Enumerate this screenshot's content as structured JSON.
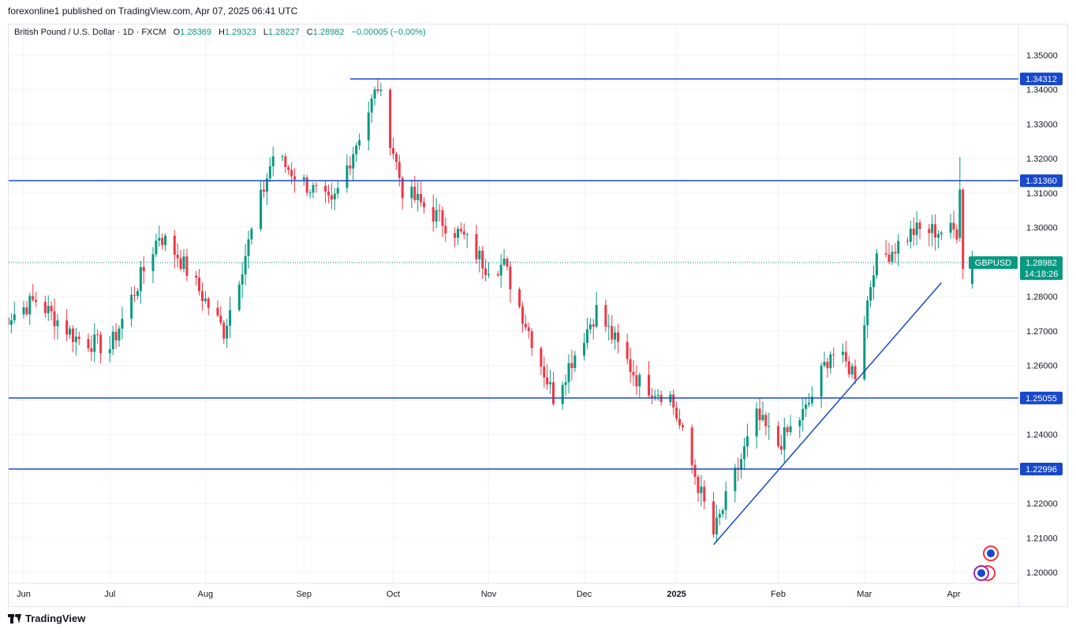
{
  "header": {
    "publish_line": "forexonline1 published on TradingView.com, Apr 07, 2025 06:41 UTC"
  },
  "legend": {
    "symbol": "British Pound / U.S. Dollar · 1D · FXCM",
    "o_label": "O",
    "o_value": "1.28369",
    "h_label": "H",
    "h_value": "1.29323",
    "l_label": "L",
    "l_value": "1.28227",
    "c_label": "C",
    "c_value": "1.28982",
    "change": "−0.00005 (−0.00%)"
  },
  "footer": {
    "brand": "TradingView"
  },
  "colors": {
    "up": "#089981",
    "down": "#f23645",
    "level_line": "#1848cc",
    "tag_bg": "#1848cc",
    "price_tag_bg": "#089981",
    "grid": "#f0f3fa"
  },
  "chart_data": {
    "type": "candlestick",
    "ylim": [
      1.195,
      1.355
    ],
    "y_ticks": [
      "1.35000",
      "1.34000",
      "1.33000",
      "1.32000",
      "1.31000",
      "1.30000",
      "1.29000",
      "1.28000",
      "1.27000",
      "1.26000",
      "1.25000",
      "1.24000",
      "1.23000",
      "1.22000",
      "1.21000",
      "1.20000"
    ],
    "x_labels": [
      {
        "label": "Jun",
        "date": "2024-06-03"
      },
      {
        "label": "Jul",
        "date": "2024-07-01"
      },
      {
        "label": "Aug",
        "date": "2024-08-01"
      },
      {
        "label": "Sep",
        "date": "2024-09-02"
      },
      {
        "label": "Oct",
        "date": "2024-10-01"
      },
      {
        "label": "Nov",
        "date": "2024-11-01"
      },
      {
        "label": "Dec",
        "date": "2024-12-02"
      },
      {
        "label": "2025",
        "date": "2025-01-01",
        "bold": true
      },
      {
        "label": "Feb",
        "date": "2025-02-03"
      },
      {
        "label": "Mar",
        "date": "2025-03-03"
      },
      {
        "label": "Apr",
        "date": "2025-04-01"
      }
    ],
    "horizontal_levels": [
      {
        "value": 1.34312,
        "label": "1.34312",
        "from_date": "2024-09-17"
      },
      {
        "value": 1.3136,
        "label": "1.31360"
      },
      {
        "value": 1.25055,
        "label": "1.25055"
      },
      {
        "value": 1.22996,
        "label": "1.22996"
      }
    ],
    "trendline": {
      "from": {
        "date": "2025-01-13",
        "value": 1.208
      },
      "to": {
        "date": "2025-03-28",
        "value": 1.284
      }
    },
    "last_price": {
      "symbol": "GBPUSD",
      "value": 1.28982,
      "label": "1.28982",
      "countdown": "14:18:26"
    },
    "anchors": [
      {
        "date": "2024-05-27",
        "close": 1.273
      },
      {
        "date": "2024-06-07",
        "close": 1.279
      },
      {
        "date": "2024-06-20",
        "close": 1.268
      },
      {
        "date": "2024-07-01",
        "close": 1.265
      },
      {
        "date": "2024-07-17",
        "close": 1.298
      },
      {
        "date": "2024-07-23",
        "close": 1.292
      },
      {
        "date": "2024-08-07",
        "close": 1.27
      },
      {
        "date": "2024-08-23",
        "close": 1.321
      },
      {
        "date": "2024-09-11",
        "close": 1.306
      },
      {
        "date": "2024-09-26",
        "close": 1.341
      },
      {
        "date": "2024-10-04",
        "close": 1.311
      },
      {
        "date": "2024-10-24",
        "close": 1.297
      },
      {
        "date": "2024-10-31",
        "close": 1.289
      },
      {
        "date": "2024-11-06",
        "close": 1.289
      },
      {
        "date": "2024-11-22",
        "close": 1.251
      },
      {
        "date": "2024-12-06",
        "close": 1.276
      },
      {
        "date": "2024-12-20",
        "close": 1.255
      },
      {
        "date": "2024-12-30",
        "close": 1.251
      },
      {
        "date": "2025-01-13",
        "close": 1.211
      },
      {
        "date": "2025-01-27",
        "close": 1.245
      },
      {
        "date": "2025-02-03",
        "close": 1.237
      },
      {
        "date": "2025-02-12",
        "close": 1.247
      },
      {
        "date": "2025-02-20",
        "close": 1.264
      },
      {
        "date": "2025-02-28",
        "close": 1.258
      },
      {
        "date": "2025-03-06",
        "close": 1.289
      },
      {
        "date": "2025-03-19",
        "close": 1.299
      },
      {
        "date": "2025-04-02",
        "close": 1.299
      },
      {
        "date": "2025-04-03",
        "close": 1.311
      },
      {
        "date": "2025-04-04",
        "close": 1.288
      },
      {
        "date": "2025-04-07",
        "close": 1.28982
      }
    ]
  }
}
